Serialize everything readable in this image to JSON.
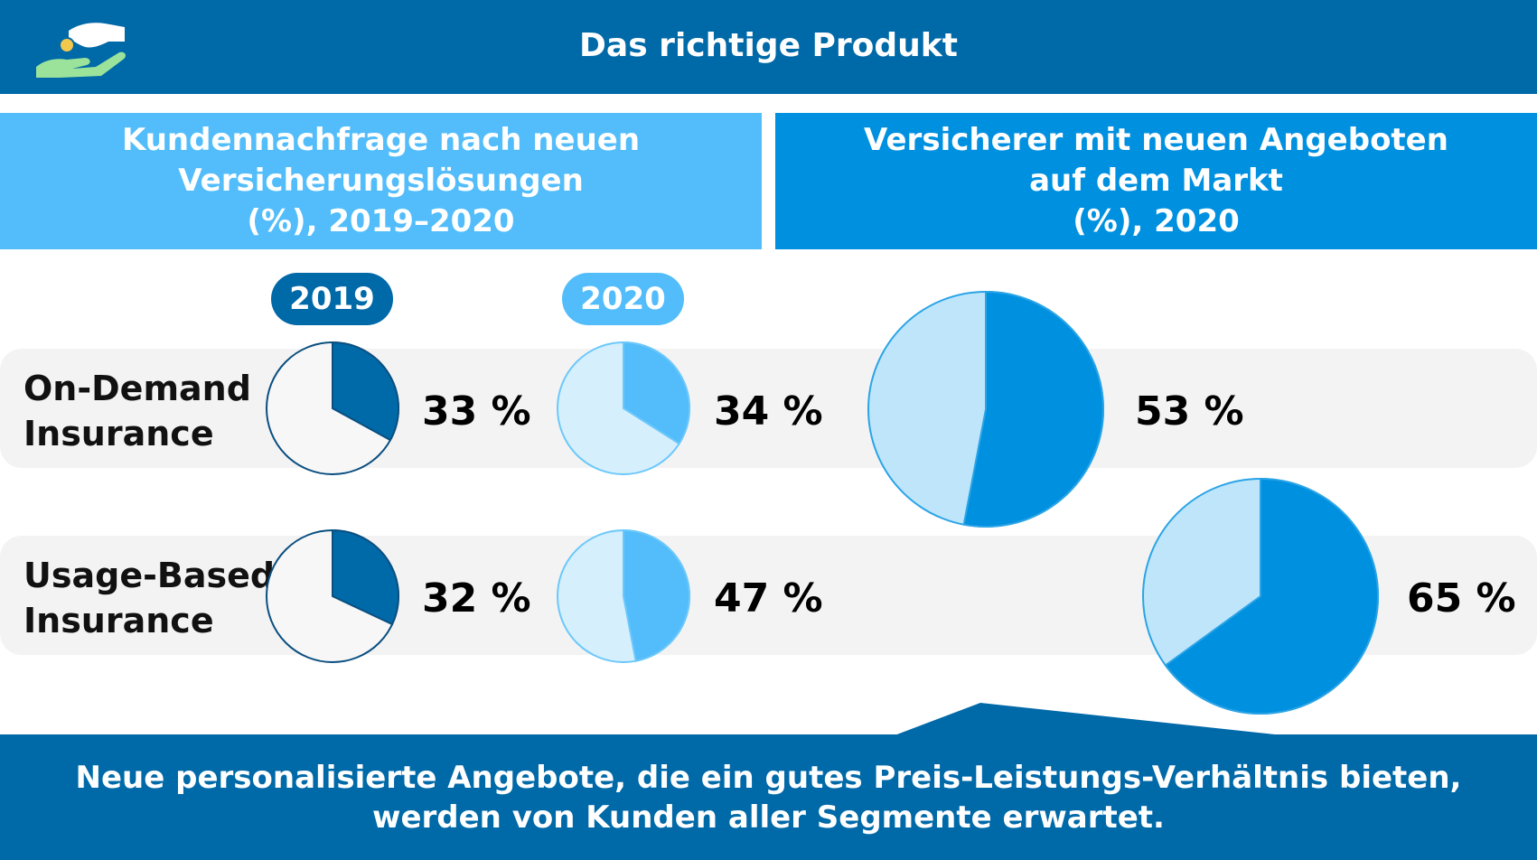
{
  "header": {
    "title": "Das richtige Produkt",
    "logo_icon": "hand-coin-icon"
  },
  "columns": {
    "left_title": [
      "Kundennachfrage nach neuen",
      "Versicherungslösungen",
      "(%), 2019–2020"
    ],
    "right_title": [
      "Versicherer mit neuen Angeboten",
      "auf dem Markt",
      "(%), 2020"
    ]
  },
  "footer": {
    "lines": [
      "Neue personalisierte Angebote, die ein gutes Preis-Leistungs-Verhältnis bieten,",
      "werden von Kunden aller Segmente erwartet."
    ]
  },
  "colors": {
    "dark_blue": "#0069a8",
    "light_blue": "#52bdfa",
    "mid_blue": "#0090e0",
    "pale_blue": "#bfe5fb"
  },
  "chart_data": [
    {
      "type": "pie",
      "title": "Kundennachfrage nach neuen Versicherungslösungen (%), 2019–2020",
      "series": [
        {
          "name": "2019",
          "values": [
            33,
            32
          ]
        },
        {
          "name": "2020",
          "values": [
            34,
            47
          ]
        }
      ],
      "categories": [
        "On-Demand Insurance",
        "Usage-Based Insurance"
      ],
      "labels": {
        "2019": [
          "33 %",
          "32 %"
        ],
        "2020": [
          "34 %",
          "47 %"
        ]
      }
    },
    {
      "type": "pie",
      "title": "Versicherer mit neuen Angeboten auf dem Markt (%), 2020",
      "categories": [
        "On-Demand Insurance",
        "Usage-Based Insurance"
      ],
      "values": [
        53,
        65
      ],
      "labels": [
        "53 %",
        "65 %"
      ]
    }
  ],
  "rows": [
    {
      "label": [
        "On-Demand",
        "Insurance"
      ]
    },
    {
      "label": [
        "Usage-Based",
        "Insurance"
      ]
    }
  ]
}
